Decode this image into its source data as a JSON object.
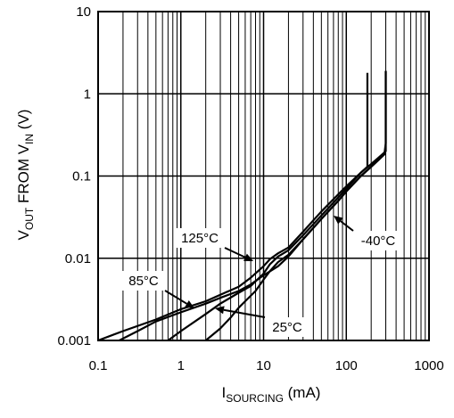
{
  "chart_data": {
    "type": "line",
    "title": "",
    "x_scale": "log",
    "y_scale": "log",
    "xlim": [
      0.1,
      1000
    ],
    "ylim": [
      0.001,
      10
    ],
    "grid": true,
    "x_ticks": [
      "0.1",
      "1",
      "10",
      "100",
      "1000"
    ],
    "y_ticks": [
      "0.001",
      "0.01",
      "0.1",
      "1",
      "10"
    ],
    "xlabel": {
      "main": "I",
      "sub": "SOURCING",
      "unit": " (mA)"
    },
    "ylabel": {
      "p1": "V",
      "s1": "OUT",
      "p2": " FROM V",
      "s2": "IN",
      "p3": " (V)"
    },
    "series": [
      {
        "name": "-40°C",
        "x": [
          2,
          3,
          4,
          5,
          6,
          8,
          10,
          12,
          15,
          20,
          30,
          50,
          80,
          100,
          150,
          200,
          250,
          290,
          300,
          300
        ],
        "y": [
          0.001,
          0.0014,
          0.0019,
          0.0025,
          0.003,
          0.004,
          0.0055,
          0.007,
          0.009,
          0.011,
          0.017,
          0.03,
          0.05,
          0.065,
          0.1,
          0.13,
          0.16,
          0.19,
          0.25,
          1.9
        ]
      },
      {
        "name": "25°C",
        "x": [
          0.7,
          1,
          2,
          3,
          5,
          7,
          10,
          12,
          15,
          20,
          30,
          50,
          80,
          100,
          150,
          200,
          250,
          300,
          300
        ],
        "y": [
          0.001,
          0.0013,
          0.0021,
          0.0028,
          0.0038,
          0.0046,
          0.0065,
          0.0085,
          0.0105,
          0.0125,
          0.019,
          0.033,
          0.055,
          0.07,
          0.11,
          0.14,
          0.17,
          0.2,
          1.9
        ]
      },
      {
        "name": "85°C",
        "x": [
          0.18,
          0.3,
          0.5,
          1,
          2,
          3,
          5,
          7,
          10,
          15,
          20,
          30,
          50,
          80,
          100,
          150,
          200,
          250,
          300
        ],
        "y": [
          0.001,
          0.0013,
          0.0017,
          0.0022,
          0.0028,
          0.0033,
          0.004,
          0.0048,
          0.0062,
          0.008,
          0.0105,
          0.017,
          0.03,
          0.05,
          0.065,
          0.1,
          0.13,
          0.16,
          0.19
        ]
      },
      {
        "name": "125°C",
        "x": [
          0.1,
          0.2,
          0.5,
          1,
          2,
          3,
          5,
          7,
          10,
          12,
          15,
          20,
          30,
          50,
          80,
          100,
          150,
          180,
          180
        ],
        "y": [
          0.001,
          0.0013,
          0.0018,
          0.0024,
          0.003,
          0.0036,
          0.0045,
          0.0058,
          0.008,
          0.0098,
          0.0115,
          0.0135,
          0.021,
          0.037,
          0.06,
          0.075,
          0.11,
          0.13,
          1.8
        ]
      }
    ],
    "annotations": [
      "125°C",
      "85°C",
      "25°C",
      "-40°C"
    ]
  }
}
